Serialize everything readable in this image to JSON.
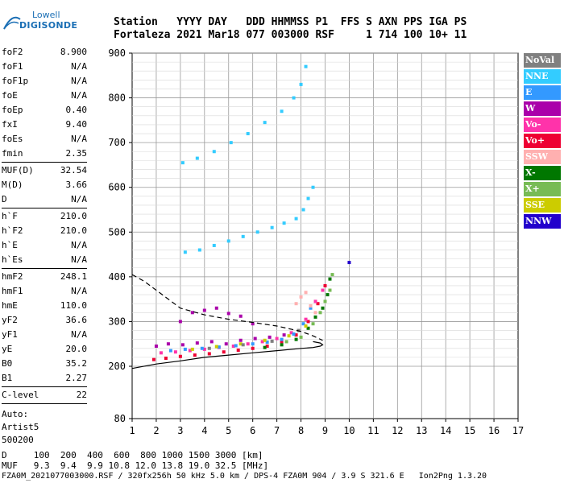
{
  "logo": {
    "line1": "Lowell",
    "line2": "DIGISONDE"
  },
  "header": {
    "line1": "Station   YYYY DAY   DDD HHMMSS P1  FFS S AXN PPS IGA PS",
    "line2": "Fortaleza 2021 Mar18 077 003000 RSF     1 714 100 10+ 11"
  },
  "params": {
    "group1": [
      {
        "label": "foF2",
        "value": "8.900"
      },
      {
        "label": "foF1",
        "value": "N/A"
      },
      {
        "label": "foF1p",
        "value": "N/A"
      },
      {
        "label": "foE",
        "value": "N/A"
      },
      {
        "label": "foEp",
        "value": "0.40"
      },
      {
        "label": "fxI",
        "value": "9.40"
      },
      {
        "label": "foEs",
        "value": "N/A"
      },
      {
        "label": "fmin",
        "value": "2.35"
      }
    ],
    "group2": [
      {
        "label": "MUF(D)",
        "value": "32.54"
      },
      {
        "label": "M(D)",
        "value": "3.66"
      },
      {
        "label": "D",
        "value": "N/A"
      }
    ],
    "group3": [
      {
        "label": "h`F",
        "value": "210.0"
      },
      {
        "label": "h`F2",
        "value": "210.0"
      },
      {
        "label": "h`E",
        "value": "N/A"
      },
      {
        "label": "h`Es",
        "value": "N/A"
      }
    ],
    "group4": [
      {
        "label": "hmF2",
        "value": "248.1"
      },
      {
        "label": "hmF1",
        "value": "N/A"
      },
      {
        "label": "hmE",
        "value": "110.0"
      },
      {
        "label": "yF2",
        "value": "36.6"
      },
      {
        "label": "yF1",
        "value": "N/A"
      },
      {
        "label": "yE",
        "value": "20.0"
      },
      {
        "label": "B0",
        "value": "35.2"
      },
      {
        "label": "B1",
        "value": "2.27"
      }
    ],
    "group5": [
      {
        "label": "C-level",
        "value": "22"
      }
    ],
    "auto": [
      "Auto:",
      "Artist5",
      "500200"
    ]
  },
  "legend": [
    {
      "label": "NoVal",
      "bg": "#808080",
      "fg": "#ffffff"
    },
    {
      "label": "NNE",
      "bg": "#33ccff",
      "fg": "#ffffff"
    },
    {
      "label": "E",
      "bg": "#3399ff",
      "fg": "#ffffff"
    },
    {
      "label": "W",
      "bg": "#aa00aa",
      "fg": "#ffffff"
    },
    {
      "label": "Vo-",
      "bg": "#ff33aa",
      "fg": "#ffffff"
    },
    {
      "label": "Vo+",
      "bg": "#ee0033",
      "fg": "#ffffff"
    },
    {
      "label": "SSW",
      "bg": "#ffb0b0",
      "fg": "#ffffff"
    },
    {
      "label": "X-",
      "bg": "#007700",
      "fg": "#ffffff"
    },
    {
      "label": "X+",
      "bg": "#77bb55",
      "fg": "#ffffff"
    },
    {
      "label": "SSE",
      "bg": "#cccc00",
      "fg": "#ffffff"
    },
    {
      "label": "NNW",
      "bg": "#2200cc",
      "fg": "#ffffff"
    }
  ],
  "footer": {
    "line1": "D     100  200  400  600  800 1000 1500 3000 [km]",
    "line2": "MUF   9.3  9.4  9.9 10.8 12.0 13.8 19.0 32.5 [MHz]",
    "line3": "FZA0M_2021077003000.RSF / 320fx256h 50 kHz 5.0 km / DPS-4 FZA0M 904 / 3.9 S 321.6 E   Ion2Png 1.3.20"
  },
  "chart_data": {
    "type": "scatter",
    "xlim": [
      1,
      17
    ],
    "ylim": [
      80,
      900
    ],
    "x_ticks": [
      1,
      2,
      3,
      4,
      5,
      6,
      7,
      8,
      9,
      10,
      11,
      12,
      13,
      14,
      15,
      16,
      17
    ],
    "y_ticks": [
      80,
      200,
      300,
      400,
      500,
      600,
      700,
      800,
      900
    ],
    "grid": true,
    "series": [
      {
        "color": "#ee0033",
        "x": [
          1.9,
          2.4,
          3.0,
          3.6,
          4.2,
          4.8,
          5.4,
          6.0,
          6.6,
          7.2,
          7.8,
          8.3,
          8.7,
          9.0
        ],
        "y": [
          215,
          218,
          222,
          225,
          228,
          232,
          236,
          240,
          245,
          255,
          270,
          300,
          340,
          380
        ]
      },
      {
        "color": "#ff33aa",
        "x": [
          2.2,
          2.8,
          3.4,
          4.0,
          4.6,
          5.2,
          5.8,
          6.4,
          7.0,
          7.6,
          8.2,
          8.6,
          8.9
        ],
        "y": [
          230,
          232,
          235,
          238,
          242,
          245,
          250,
          255,
          262,
          275,
          305,
          345,
          370
        ]
      },
      {
        "color": "#aa00aa",
        "x": [
          2.0,
          2.5,
          3.1,
          3.7,
          4.3,
          4.9,
          5.5,
          6.1,
          6.7,
          7.3,
          3.0,
          3.5,
          4.0,
          4.5,
          5.0,
          5.5,
          6.0
        ],
        "y": [
          245,
          250,
          248,
          252,
          255,
          250,
          258,
          262,
          265,
          270,
          300,
          320,
          325,
          330,
          318,
          312,
          295
        ]
      },
      {
        "color": "#33ccff",
        "x": [
          3.2,
          3.8,
          4.4,
          5.0,
          5.6,
          6.2,
          6.8,
          7.3,
          7.8,
          8.1,
          8.3,
          8.5,
          3.1,
          3.7,
          4.4,
          5.1,
          5.8,
          6.5,
          7.2,
          7.7,
          8.0,
          8.2
        ],
        "y": [
          455,
          460,
          470,
          480,
          490,
          500,
          510,
          520,
          530,
          550,
          575,
          600,
          655,
          665,
          680,
          700,
          720,
          745,
          770,
          800,
          830,
          870
        ]
      },
      {
        "color": "#3399ff",
        "x": [
          2.6,
          3.2,
          3.9,
          4.6,
          5.3,
          6.0,
          6.6,
          7.2,
          7.7,
          8.1,
          8.4
        ],
        "y": [
          235,
          238,
          240,
          243,
          246,
          250,
          254,
          260,
          272,
          295,
          330
        ]
      },
      {
        "color": "#007700",
        "x": [
          6.5,
          7.2,
          7.8,
          8.3,
          8.6,
          8.9,
          9.1,
          9.2
        ],
        "y": [
          242,
          248,
          260,
          285,
          310,
          330,
          360,
          395
        ]
      },
      {
        "color": "#77bb55",
        "x": [
          7.4,
          8.0,
          8.5,
          8.8,
          9.0,
          9.2,
          9.3
        ],
        "y": [
          255,
          265,
          295,
          320,
          345,
          370,
          405
        ]
      },
      {
        "color": "#cccc00",
        "x": [
          3.5,
          4.5,
          5.5,
          6.5,
          7.5,
          8.2
        ],
        "y": [
          238,
          244,
          250,
          258,
          268,
          290
        ]
      },
      {
        "color": "#ffb0b0",
        "x": [
          7.8,
          8.0,
          8.2,
          8.4,
          8.6
        ],
        "y": [
          340,
          355,
          365,
          335,
          320
        ]
      },
      {
        "color": "#808080",
        "x": [
          4.2,
          5.6,
          6.8,
          7.9
        ],
        "y": [
          240,
          248,
          256,
          280
        ]
      },
      {
        "color": "#2200cc",
        "x": [
          10.0
        ],
        "y": [
          432
        ]
      }
    ],
    "profile_solid": {
      "x": [
        1.0,
        2.0,
        3.0,
        4.0,
        5.0,
        6.0,
        7.0,
        8.0,
        8.5,
        8.8,
        8.9,
        8.8,
        8.5
      ],
      "y": [
        195,
        205,
        212,
        220,
        225,
        230,
        235,
        240,
        242,
        245,
        248,
        252,
        255
      ]
    },
    "profile_dashed": {
      "x": [
        1.0,
        1.5,
        2.0,
        2.5,
        3.0,
        4.0,
        5.0,
        6.0,
        7.0,
        8.0,
        8.5,
        8.9
      ],
      "y": [
        405,
        390,
        370,
        350,
        330,
        315,
        305,
        298,
        290,
        278,
        268,
        258
      ]
    }
  }
}
